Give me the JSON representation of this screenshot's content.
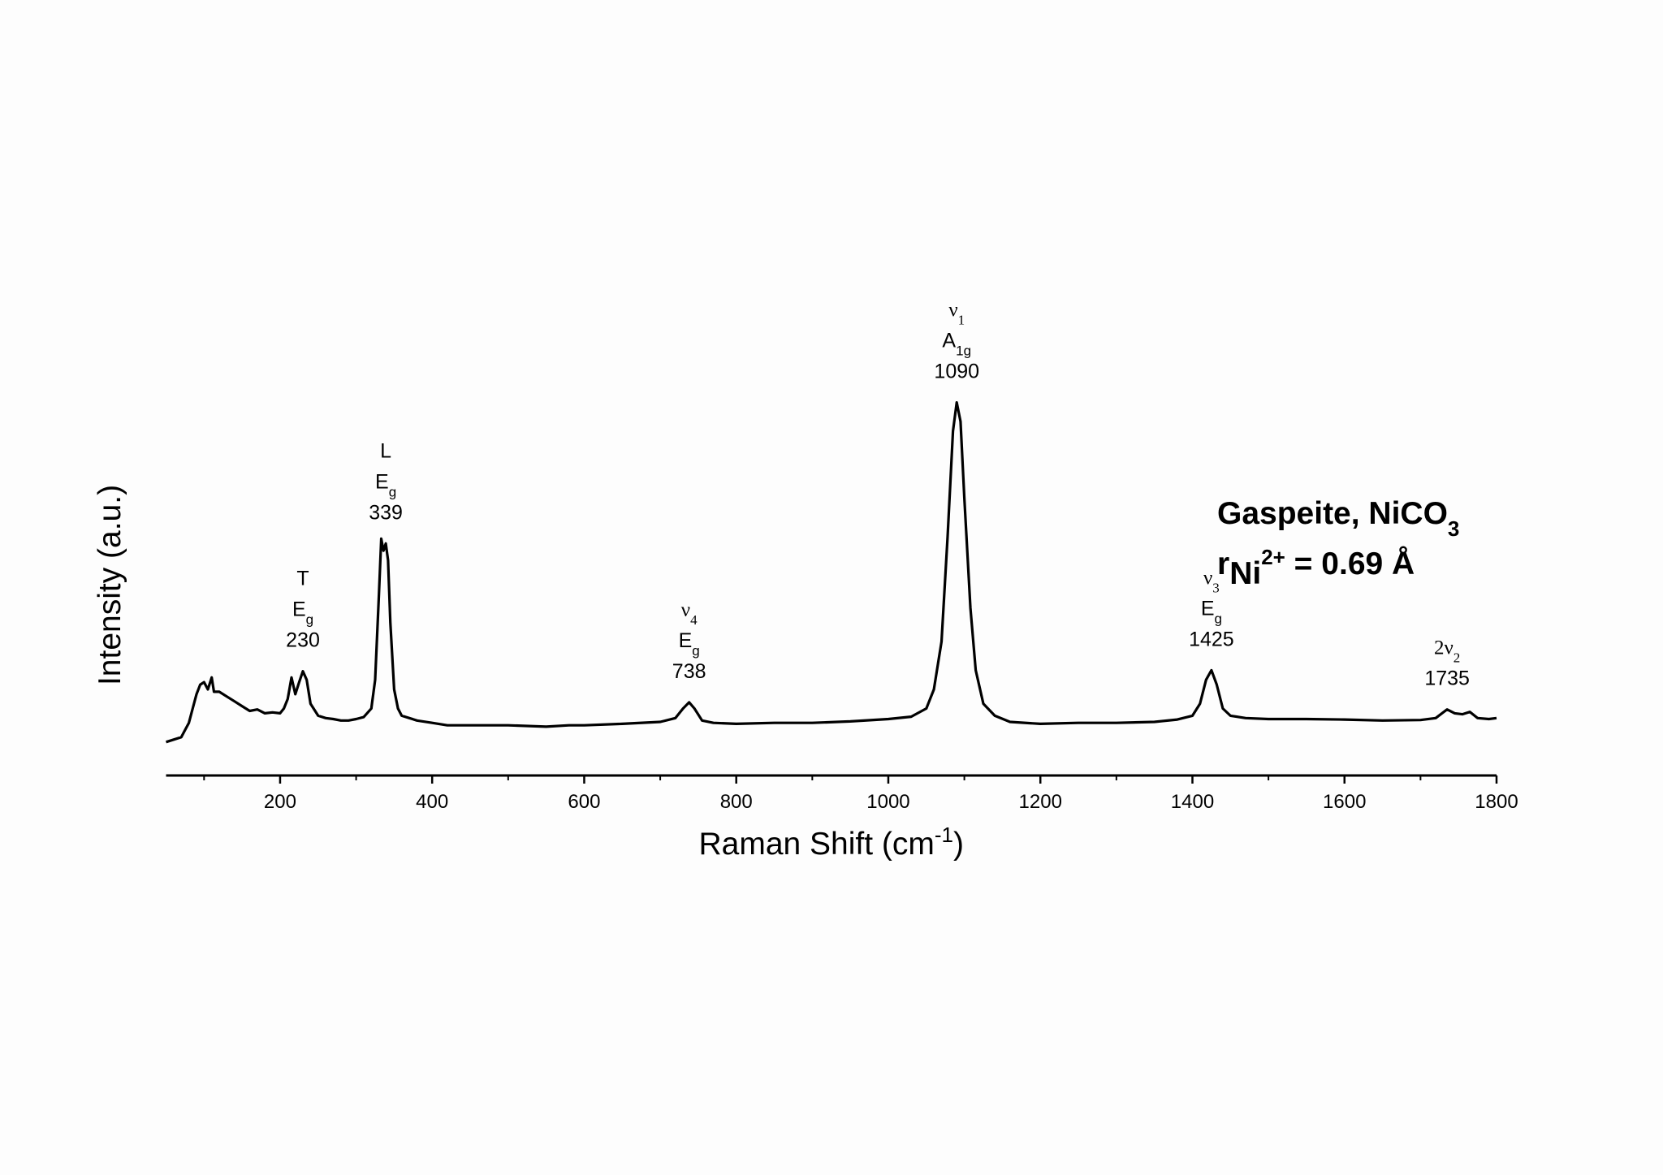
{
  "chart_data": {
    "type": "line",
    "x_label": {
      "text": "Raman Shift (cm",
      "sup": "-1",
      "end": ")"
    },
    "y_label": "Intensity (a.u.)",
    "color": "#000000",
    "x": [
      50,
      60,
      70,
      75,
      80,
      85,
      90,
      95,
      100,
      105,
      110,
      113,
      120,
      130,
      140,
      150,
      160,
      170,
      180,
      190,
      200,
      205,
      210,
      215,
      220,
      225,
      230,
      235,
      240,
      250,
      260,
      270,
      280,
      290,
      300,
      310,
      320,
      325,
      330,
      333,
      336,
      339,
      342,
      345,
      350,
      355,
      360,
      370,
      380,
      400,
      420,
      450,
      480,
      500,
      550,
      580,
      600,
      650,
      700,
      720,
      730,
      738,
      745,
      755,
      770,
      800,
      850,
      900,
      950,
      1000,
      1030,
      1050,
      1060,
      1070,
      1078,
      1085,
      1090,
      1095,
      1100,
      1108,
      1115,
      1125,
      1140,
      1160,
      1200,
      1250,
      1300,
      1350,
      1380,
      1400,
      1410,
      1418,
      1425,
      1432,
      1440,
      1450,
      1470,
      1500,
      1550,
      1600,
      1650,
      1700,
      1720,
      1735,
      1745,
      1755,
      1765,
      1775,
      1790,
      1800
    ],
    "values": [
      7,
      7.5,
      8,
      9.5,
      11,
      14,
      17,
      19,
      19.5,
      18,
      20.5,
      17.5,
      17.5,
      16.5,
      15.5,
      14.5,
      13.5,
      13.8,
      13,
      13.2,
      13,
      14,
      16,
      20.5,
      17,
      19.5,
      21.8,
      20,
      15,
      12.5,
      12,
      11.8,
      11.5,
      11.5,
      11.8,
      12.2,
      14,
      20,
      38,
      49.5,
      47,
      48.5,
      45,
      32,
      18,
      14,
      12.5,
      12,
      11.5,
      11,
      10.5,
      10.5,
      10.5,
      10.5,
      10.2,
      10.5,
      10.5,
      10.8,
      11.2,
      12,
      14,
      15.3,
      14,
      11.5,
      11,
      10.8,
      11,
      11,
      11.3,
      11.8,
      12.3,
      14,
      18,
      28,
      50,
      72,
      78,
      74,
      58,
      35,
      22,
      15,
      12.5,
      11.2,
      10.8,
      11,
      11,
      11.2,
      11.7,
      12.5,
      15,
      20,
      22,
      19,
      14,
      12.5,
      12,
      11.8,
      11.8,
      11.7,
      11.5,
      11.6,
      12,
      13.8,
      13,
      12.8,
      13.3,
      12,
      11.8,
      12
    ],
    "xlim": [
      50,
      1800
    ],
    "ylim": [
      0,
      100
    ],
    "xticks": [
      200,
      400,
      600,
      800,
      1000,
      1200,
      1400,
      1600,
      1800
    ],
    "xminor_ticks": [
      100,
      300,
      500,
      700,
      900,
      1100,
      1300,
      1500,
      1700
    ],
    "annotations": [
      {
        "mode": "T",
        "symmetry": "E",
        "symmetry_sub": "g",
        "peak": 230
      },
      {
        "mode": "L",
        "symmetry": "E",
        "symmetry_sub": "g",
        "peak": 339
      },
      {
        "mode": "ν",
        "mode_sub": "4",
        "symmetry": "E",
        "symmetry_sub": "g",
        "peak": 738
      },
      {
        "mode": "ν",
        "mode_sub": "1",
        "symmetry": "A",
        "symmetry_sub": "1g",
        "peak": 1090
      },
      {
        "mode": "ν",
        "mode_sub": "3",
        "symmetry": "E",
        "symmetry_sub": "g",
        "peak": 1425
      },
      {
        "mode": "2ν",
        "mode_sub": "2",
        "peak": 1735
      }
    ],
    "text_box": {
      "title": "Gaspeite, NiCO",
      "title_sub": "3",
      "radius_symbol": "r",
      "radius_sub": "Ni",
      "radius_sup": "2+",
      "radius_value": " = 0.69 Å"
    }
  }
}
